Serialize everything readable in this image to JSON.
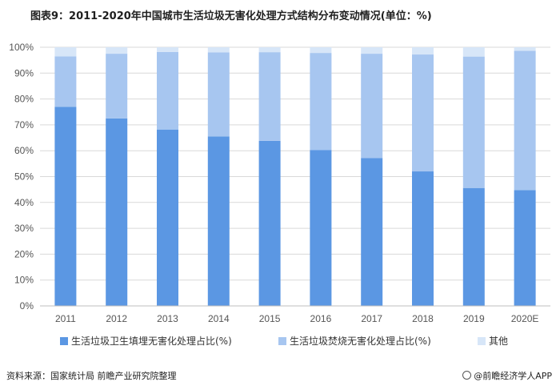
{
  "title": "图表9：2011-2020年中国城市生活垃圾无害化处理方式结构分布变动情况(单位：%)",
  "source": "资料来源：国家统计局 前瞻产业研究院整理",
  "brand": "@前瞻经济学人APP",
  "colors": {
    "landfill": "#5b97e3",
    "incineration": "#a7c6f0",
    "other": "#d7e6f8",
    "grid": "#d9d9d9"
  },
  "chart_data": {
    "type": "bar",
    "stacked": true,
    "categories": [
      "2011",
      "2012",
      "2013",
      "2014",
      "2015",
      "2016",
      "2017",
      "2018",
      "2019",
      "2020E"
    ],
    "series": [
      {
        "name": "生活垃圾卫生填埋无害化处理占比(%)",
        "values": [
          77,
          72.5,
          68.2,
          65.5,
          63.8,
          60.3,
          57.2,
          52,
          45.6,
          44.8
        ]
      },
      {
        "name": "生活垃圾焚烧无害化处理占比(%)",
        "values": [
          19.5,
          25,
          30,
          32.5,
          34.3,
          37.5,
          40.3,
          45.2,
          50.8,
          53.8
        ]
      },
      {
        "name": "其他",
        "values": [
          3.5,
          2.5,
          1.8,
          2,
          1.9,
          2.2,
          2.5,
          2.8,
          3.6,
          1.4
        ]
      }
    ],
    "yticks": [
      "0%",
      "10%",
      "20%",
      "30%",
      "40%",
      "50%",
      "60%",
      "70%",
      "80%",
      "90%",
      "100%"
    ],
    "ylim": [
      0,
      100
    ],
    "legend": "bottom",
    "grid": true
  }
}
